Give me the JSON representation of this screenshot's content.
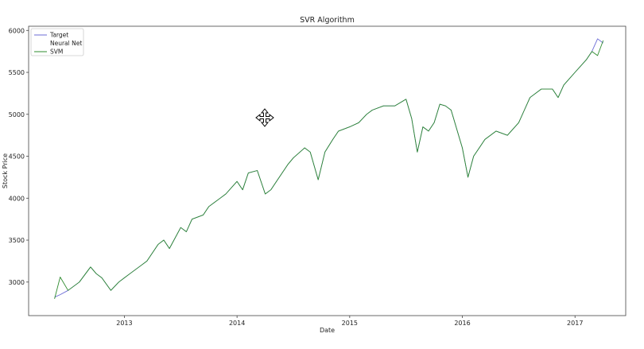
{
  "chart_data": {
    "type": "line",
    "title": "SVR Algorithm",
    "xlabel": "Date",
    "ylabel": "Stock Price",
    "xlim": [
      2012.15,
      2017.45
    ],
    "ylim": [
      2600,
      6050
    ],
    "x_ticks": [
      {
        "value": 2013,
        "label": "2013"
      },
      {
        "value": 2014,
        "label": "2014"
      },
      {
        "value": 2015,
        "label": "2015"
      },
      {
        "value": 2016,
        "label": "2016"
      },
      {
        "value": 2017,
        "label": "2017"
      }
    ],
    "y_ticks": [
      3000,
      3500,
      4000,
      4500,
      5000,
      5500,
      6000
    ],
    "legend": {
      "placement": "top-left"
    },
    "series": [
      {
        "name": "Target",
        "color": "#6b6bd6",
        "x": [
          2012.38,
          2012.43,
          2012.5,
          2012.6,
          2012.7,
          2012.75,
          2012.8,
          2012.88,
          2012.95,
          2013.0,
          2013.05,
          2013.15,
          2013.2,
          2013.3,
          2013.35,
          2013.4,
          2013.5,
          2013.55,
          2013.6,
          2013.7,
          2013.75,
          2013.85,
          2013.9,
          2014.0,
          2014.05,
          2014.1,
          2014.18,
          2014.25,
          2014.3,
          2014.35,
          2014.45,
          2014.5,
          2014.6,
          2014.65,
          2014.72,
          2014.78,
          2014.85,
          2014.9,
          2015.0,
          2015.08,
          2015.15,
          2015.2,
          2015.3,
          2015.4,
          2015.5,
          2015.55,
          2015.6,
          2015.65,
          2015.7,
          2015.75,
          2015.8,
          2015.85,
          2015.9,
          2016.0,
          2016.05,
          2016.1,
          2016.15,
          2016.2,
          2016.3,
          2016.4,
          2016.5,
          2016.55,
          2016.6,
          2016.7,
          2016.8,
          2016.85,
          2016.9,
          2017.0,
          2017.1,
          2017.15,
          2017.2,
          2017.25
        ],
        "y": [
          2820,
          2850,
          2900,
          3000,
          3180,
          3100,
          3050,
          2900,
          3000,
          3050,
          3100,
          3200,
          3250,
          3450,
          3500,
          3400,
          3650,
          3600,
          3750,
          3800,
          3900,
          4000,
          4050,
          4200,
          4100,
          4300,
          4330,
          4050,
          4100,
          4200,
          4400,
          4480,
          4600,
          4550,
          4220,
          4550,
          4700,
          4800,
          4850,
          4900,
          5000,
          5050,
          5100,
          5100,
          5180,
          4950,
          4550,
          4850,
          4800,
          4900,
          5120,
          5100,
          5050,
          4600,
          4250,
          4500,
          4600,
          4700,
          4800,
          4750,
          4900,
          5050,
          5200,
          5300,
          5300,
          5200,
          5350,
          5500,
          5650,
          5750,
          5900,
          5850
        ]
      },
      {
        "name": "Neural Net",
        "color": "#ffffff",
        "x": [],
        "y": []
      },
      {
        "name": "SVM",
        "color": "#2e8b2e",
        "x": [
          2012.38,
          2012.43,
          2012.5,
          2012.6,
          2012.7,
          2012.75,
          2012.8,
          2012.88,
          2012.95,
          2013.0,
          2013.05,
          2013.15,
          2013.2,
          2013.3,
          2013.35,
          2013.4,
          2013.5,
          2013.55,
          2013.6,
          2013.7,
          2013.75,
          2013.85,
          2013.9,
          2014.0,
          2014.05,
          2014.1,
          2014.18,
          2014.25,
          2014.3,
          2014.35,
          2014.45,
          2014.5,
          2014.6,
          2014.65,
          2014.72,
          2014.78,
          2014.85,
          2014.9,
          2015.0,
          2015.08,
          2015.15,
          2015.2,
          2015.3,
          2015.4,
          2015.5,
          2015.55,
          2015.6,
          2015.65,
          2015.7,
          2015.75,
          2015.8,
          2015.85,
          2015.9,
          2016.0,
          2016.05,
          2016.1,
          2016.15,
          2016.2,
          2016.3,
          2016.4,
          2016.5,
          2016.55,
          2016.6,
          2016.7,
          2016.8,
          2016.85,
          2016.9,
          2017.0,
          2017.1,
          2017.15,
          2017.2,
          2017.25
        ],
        "y": [
          2800,
          3060,
          2900,
          3000,
          3180,
          3100,
          3050,
          2900,
          3000,
          3050,
          3100,
          3200,
          3250,
          3450,
          3500,
          3400,
          3650,
          3600,
          3750,
          3800,
          3900,
          4000,
          4050,
          4200,
          4100,
          4300,
          4330,
          4050,
          4100,
          4200,
          4400,
          4480,
          4600,
          4550,
          4220,
          4550,
          4700,
          4800,
          4850,
          4900,
          5000,
          5050,
          5100,
          5100,
          5180,
          4950,
          4550,
          4850,
          4800,
          4900,
          5120,
          5100,
          5050,
          4600,
          4250,
          4500,
          4600,
          4700,
          4800,
          4750,
          4900,
          5050,
          5200,
          5300,
          5300,
          5200,
          5350,
          5500,
          5650,
          5750,
          5700,
          5880
        ]
      }
    ]
  }
}
